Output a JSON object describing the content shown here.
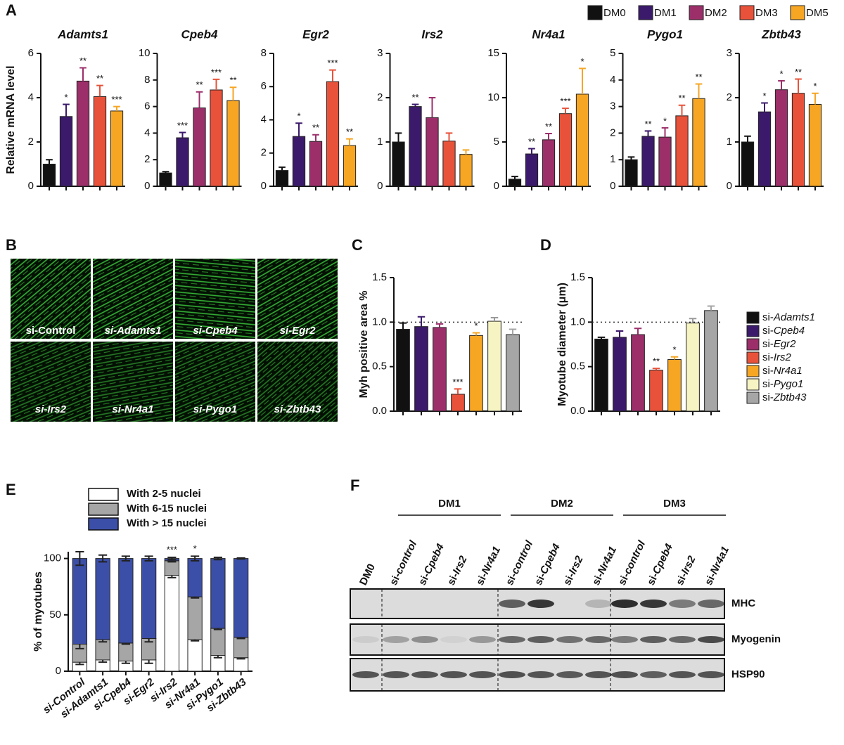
{
  "panel_labels": [
    "A",
    "B",
    "C",
    "D",
    "E",
    "F"
  ],
  "chart_data": [
    {
      "type": "bar",
      "title": "Adamts1",
      "ylabel": "Relative mRNA level",
      "legend": true,
      "categories": [
        "DM0",
        "DM1",
        "DM2",
        "DM3",
        "DM5"
      ],
      "colors": [
        "#111111",
        "#3b1a6b",
        "#9c2f6a",
        "#e8523a",
        "#f6a623"
      ],
      "values": [
        1.0,
        3.15,
        4.75,
        4.05,
        3.4
      ],
      "errors": [
        0.2,
        0.55,
        0.6,
        0.5,
        0.2
      ],
      "annotations": [
        null,
        "*",
        "**",
        "**",
        "***"
      ],
      "ylim": [
        0,
        6
      ],
      "yticks": [
        0,
        2,
        4,
        6
      ]
    },
    {
      "type": "bar",
      "title": "Cpeb4",
      "categories": [
        "DM0",
        "DM1",
        "DM2",
        "DM3",
        "DM5"
      ],
      "colors": [
        "#111111",
        "#3b1a6b",
        "#9c2f6a",
        "#e8523a",
        "#f6a623"
      ],
      "values": [
        1.0,
        3.65,
        5.9,
        7.25,
        6.45
      ],
      "errors": [
        0.1,
        0.4,
        1.2,
        0.8,
        1.0
      ],
      "annotations": [
        null,
        "***",
        "**",
        "***",
        "**"
      ],
      "ylim": [
        0,
        10
      ],
      "yticks": [
        0,
        2,
        4,
        6,
        8,
        10
      ]
    },
    {
      "type": "bar",
      "title": "Egr2",
      "categories": [
        "DM0",
        "DM1",
        "DM2",
        "DM3",
        "DM5"
      ],
      "colors": [
        "#111111",
        "#3b1a6b",
        "#9c2f6a",
        "#e8523a",
        "#f6a623"
      ],
      "values": [
        0.95,
        3.0,
        2.7,
        6.3,
        2.45
      ],
      "errors": [
        0.2,
        0.8,
        0.4,
        0.7,
        0.4
      ],
      "annotations": [
        null,
        "*",
        "**",
        "***",
        "**"
      ],
      "ylim": [
        0,
        8
      ],
      "yticks": [
        0,
        2,
        4,
        6,
        8
      ]
    },
    {
      "type": "bar",
      "title": "Irs2",
      "categories": [
        "DM0",
        "DM1",
        "DM2",
        "DM3",
        "DM5"
      ],
      "colors": [
        "#111111",
        "#3b1a6b",
        "#9c2f6a",
        "#e8523a",
        "#f6a623"
      ],
      "values": [
        1.0,
        1.8,
        1.55,
        1.02,
        0.72
      ],
      "errors": [
        0.2,
        0.05,
        0.45,
        0.18,
        0.1
      ],
      "annotations": [
        null,
        "**",
        null,
        null,
        null
      ],
      "ylim": [
        0,
        3
      ],
      "yticks": [
        0,
        1,
        2,
        3
      ]
    },
    {
      "type": "bar",
      "title": "Nr4a1",
      "categories": [
        "DM0",
        "DM1",
        "DM2",
        "DM3",
        "DM5"
      ],
      "colors": [
        "#111111",
        "#3b1a6b",
        "#9c2f6a",
        "#e8523a",
        "#f6a623"
      ],
      "values": [
        0.8,
        3.65,
        5.25,
        8.2,
        10.4
      ],
      "errors": [
        0.3,
        0.6,
        0.7,
        0.6,
        2.9
      ],
      "annotations": [
        null,
        "**",
        "**",
        "***",
        "*"
      ],
      "ylim": [
        0,
        15
      ],
      "yticks": [
        0,
        5,
        10,
        15
      ]
    },
    {
      "type": "bar",
      "title": "Pygo1",
      "categories": [
        "DM0",
        "DM1",
        "DM2",
        "DM3",
        "DM5"
      ],
      "colors": [
        "#111111",
        "#3b1a6b",
        "#9c2f6a",
        "#e8523a",
        "#f6a623"
      ],
      "values": [
        1.0,
        1.88,
        1.85,
        2.65,
        3.3
      ],
      "errors": [
        0.1,
        0.2,
        0.35,
        0.4,
        0.55
      ],
      "annotations": [
        null,
        "**",
        "*",
        "**",
        "**"
      ],
      "ylim": [
        0,
        5
      ],
      "yticks": [
        0,
        1,
        2,
        3,
        4,
        5
      ]
    },
    {
      "type": "bar",
      "title": "Zbtb43",
      "categories": [
        "DM0",
        "DM1",
        "DM2",
        "DM3",
        "DM5"
      ],
      "colors": [
        "#111111",
        "#3b1a6b",
        "#9c2f6a",
        "#e8523a",
        "#f6a623"
      ],
      "values": [
        1.0,
        1.68,
        2.18,
        2.1,
        1.85
      ],
      "errors": [
        0.13,
        0.2,
        0.2,
        0.32,
        0.25
      ],
      "annotations": [
        null,
        "*",
        "*",
        "**",
        "*"
      ],
      "ylim": [
        0,
        3
      ],
      "yticks": [
        0,
        1,
        2,
        3
      ]
    },
    {
      "type": "bar",
      "ylabel": "Myh positive area %",
      "reference_line": 1,
      "categories": [
        "si-Adamts1",
        "si-Cpeb4",
        "si-Egr2",
        "si-Irs2",
        "si-Nr4a1",
        "si-Pygo1",
        "si-Zbtb43"
      ],
      "colors": [
        "#111111",
        "#3b1a6b",
        "#9c2f6a",
        "#e8523a",
        "#f6a623",
        "#f7f4c4",
        "#a6a6a6"
      ],
      "values": [
        0.92,
        0.95,
        0.94,
        0.19,
        0.85,
        1.01,
        0.86
      ],
      "errors": [
        0.07,
        0.11,
        0.04,
        0.06,
        0.03,
        0.04,
        0.06
      ],
      "annotations": [
        null,
        null,
        null,
        "***",
        "*",
        null,
        null
      ],
      "ylim": [
        0,
        1.5
      ],
      "yticks": [
        {
          "value": 0,
          "label": "0.0"
        },
        0.5,
        {
          "value": 1,
          "label": "1.0"
        },
        1.5
      ]
    },
    {
      "type": "bar",
      "ylabel": "Myotube diameter (μm)",
      "reference_line": 1,
      "legend": true,
      "categories": [
        "si-Adamts1",
        "si-Cpeb4",
        "si-Egr2",
        "si-Irs2",
        "si-Nr4a1",
        "si-Pygo1",
        "si-Zbtb43"
      ],
      "colors": [
        "#111111",
        "#3b1a6b",
        "#9c2f6a",
        "#e8523a",
        "#f6a623",
        "#f7f4c4",
        "#a6a6a6"
      ],
      "values": [
        0.81,
        0.83,
        0.86,
        0.46,
        0.58,
        0.99,
        1.13
      ],
      "errors": [
        0.02,
        0.07,
        0.07,
        0.02,
        0.03,
        0.05,
        0.05
      ],
      "annotations": [
        null,
        null,
        null,
        "**",
        "*",
        null,
        null
      ],
      "ylim": [
        0,
        1.5
      ],
      "yticks": [
        {
          "value": 0,
          "label": "0.0"
        },
        0.5,
        {
          "value": 1,
          "label": "1.0"
        },
        1.5
      ]
    },
    {
      "type": "stacked_bar",
      "ylabel": "% of myotubes",
      "categories": [
        "si-Control",
        "si-Adamts1",
        "si-Cpeb4",
        "si-Egr2",
        "si-Irs2",
        "si-Nr4a1",
        "si-Pygo1",
        "si-Zbtb43"
      ],
      "series": [
        {
          "name": "With 2-5 nuclei",
          "color": "#ffffff",
          "values": [
            8,
            10,
            9,
            10,
            85,
            28,
            14,
            12
          ],
          "errors": [
            2,
            2,
            2,
            3,
            2,
            1,
            2,
            1
          ]
        },
        {
          "name": "With 6-15 nuclei",
          "color": "#a6a6a6",
          "values": [
            16,
            18,
            16,
            19,
            13,
            38,
            24,
            18
          ],
          "errors": [
            4,
            2,
            1,
            3,
            1,
            1,
            1,
            1
          ]
        },
        {
          "name": "With > 15 nuclei",
          "color": "#3c4fa8",
          "values": [
            76,
            72,
            75,
            71,
            2,
            34,
            62,
            70
          ],
          "errors": [
            6,
            3,
            2,
            2,
            1,
            2,
            1,
            0.5
          ]
        }
      ],
      "annotations": [
        null,
        null,
        null,
        null,
        "***",
        "*",
        null,
        null
      ],
      "ylim": [
        0,
        106
      ],
      "yticks": [
        0,
        50,
        100
      ]
    }
  ],
  "images": {
    "labels": [
      "si-Control",
      "si-Adamts1",
      "si-Cpeb4",
      "si-Egr2",
      "si-Irs2",
      "si-Nr4a1",
      "si-Pygo1",
      "si-Zbtb43"
    ]
  },
  "blot": {
    "groups": [
      "DM1",
      "DM2",
      "DM3"
    ],
    "lanes": [
      "DM0",
      "si-control",
      "si-Cpeb4",
      "si-Irs2",
      "si-Nr4a1",
      "si-control",
      "si-Cpeb4",
      "si-Irs2",
      "si-Nr4a1",
      "si-control",
      "si-Cpeb4",
      "si-Irs2",
      "si-Nr4a1"
    ],
    "rows": [
      "MHC",
      "Myogenin",
      "HSP90"
    ]
  }
}
